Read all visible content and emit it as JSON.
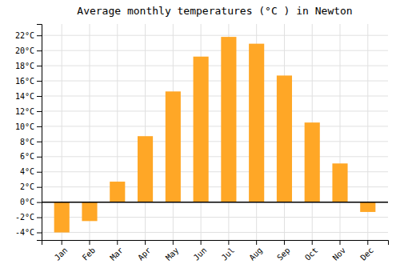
{
  "chart_data": {
    "type": "bar",
    "title": "Average monthly temperatures (°C ) in Newton",
    "categories": [
      "Jan",
      "Feb",
      "Mar",
      "Apr",
      "May",
      "Jun",
      "Jul",
      "Aug",
      "Sep",
      "Oct",
      "Nov",
      "Dec"
    ],
    "values": [
      -4.0,
      -2.5,
      2.7,
      8.7,
      14.6,
      19.2,
      21.8,
      20.9,
      16.7,
      10.5,
      5.1,
      -1.3
    ],
    "color": "#FFA726",
    "ylim": [
      -5,
      23.5
    ],
    "yticks": [
      {
        "value": -4,
        "label": "-4°C"
      },
      {
        "value": -2,
        "label": "-2°C"
      },
      {
        "value": 0,
        "label": "0°C"
      },
      {
        "value": 2,
        "label": "2°C"
      },
      {
        "value": 4,
        "label": "4°C"
      },
      {
        "value": 6,
        "label": "6°C"
      },
      {
        "value": 8,
        "label": "8°C"
      },
      {
        "value": 10,
        "label": "10°C"
      },
      {
        "value": 12,
        "label": "12°C"
      },
      {
        "value": 14,
        "label": "14°C"
      },
      {
        "value": 16,
        "label": "16°C"
      },
      {
        "value": 18,
        "label": "18°C"
      },
      {
        "value": 20,
        "label": "20°C"
      },
      {
        "value": 22,
        "label": "22°C"
      }
    ],
    "grid": true
  }
}
